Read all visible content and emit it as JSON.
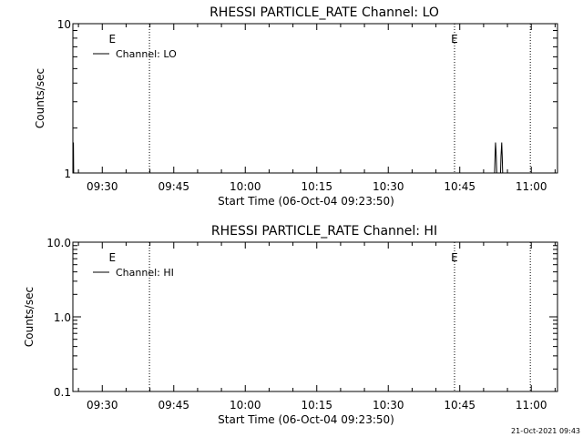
{
  "chart_data": [
    {
      "type": "line",
      "title": "RHESSI PARTICLE_RATE Channel: LO",
      "xlabel": "Start Time (06-Oct-04 09:23:50)",
      "ylabel": "Counts/sec",
      "yscale": "log",
      "ylim": [
        1,
        10
      ],
      "y_tick_labels": [
        "1",
        "10"
      ],
      "x_tick_labels": [
        "09:30",
        "09:45",
        "10:00",
        "10:15",
        "10:30",
        "10:45",
        "11:00"
      ],
      "x_tick_minutes": [
        570,
        585,
        600,
        615,
        630,
        645,
        660
      ],
      "xlim_minutes": [
        563.833,
        665.5
      ],
      "markers": [
        {
          "label": "E",
          "minute": 572.1
        },
        {
          "label": "E",
          "minute": 643.9
        }
      ],
      "vlines_minutes": [
        579.9,
        643.9,
        659.8
      ],
      "legend": {
        "placement": "top-left",
        "entries": [
          "Channel: LO"
        ]
      },
      "series": [
        {
          "name": "Channel: LO",
          "points": [
            [
              563.9,
              1.0
            ],
            [
              563.95,
              1.6
            ],
            [
              564.0,
              1.0
            ],
            [
              564.1,
              1.0
            ],
            [
              652.3,
              1.0
            ],
            [
              652.4,
              1.3
            ],
            [
              652.5,
              1.6
            ],
            [
              652.65,
              1.3
            ],
            [
              652.75,
              1.0
            ],
            [
              653.0,
              1.0
            ],
            [
              653.55,
              1.0
            ],
            [
              653.65,
              1.3
            ],
            [
              653.8,
              1.6
            ],
            [
              653.9,
              1.3
            ],
            [
              654.0,
              1.0
            ]
          ]
        }
      ]
    },
    {
      "type": "line",
      "title": "RHESSI PARTICLE_RATE Channel: HI",
      "xlabel": "Start Time (06-Oct-04 09:23:50)",
      "ylabel": "Counts/sec",
      "yscale": "log",
      "ylim": [
        0.1,
        10
      ],
      "y_tick_labels": [
        "0.1",
        "1.0",
        "10.0"
      ],
      "x_tick_labels": [
        "09:30",
        "09:45",
        "10:00",
        "10:15",
        "10:30",
        "10:45",
        "11:00"
      ],
      "x_tick_minutes": [
        570,
        585,
        600,
        615,
        630,
        645,
        660
      ],
      "xlim_minutes": [
        563.833,
        665.5
      ],
      "markers": [
        {
          "label": "E",
          "minute": 572.1
        },
        {
          "label": "E",
          "minute": 643.9
        }
      ],
      "vlines_minutes": [
        579.9,
        643.9,
        659.8
      ],
      "legend": {
        "placement": "top-left",
        "entries": [
          "Channel: HI"
        ]
      },
      "series": [
        {
          "name": "Channel: HI",
          "points": []
        }
      ]
    }
  ],
  "footer": {
    "timestamp": "21-Oct-2021 09:43"
  }
}
